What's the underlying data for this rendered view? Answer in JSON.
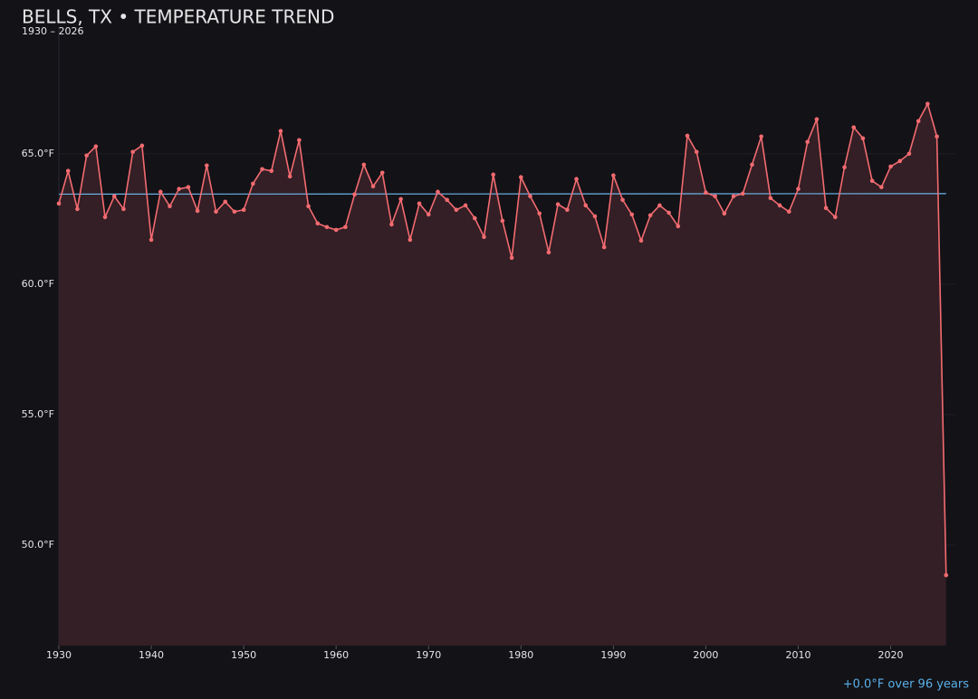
{
  "chart_data": {
    "type": "line",
    "title": "BELLS, TX • TEMPERATURE TREND",
    "subtitle": "1930 – 2026",
    "annotation": "+0.0°F over 96 years",
    "x": [
      1930,
      1931,
      1932,
      1933,
      1934,
      1935,
      1936,
      1937,
      1938,
      1939,
      1940,
      1941,
      1942,
      1943,
      1944,
      1945,
      1946,
      1947,
      1948,
      1949,
      1950,
      1951,
      1952,
      1953,
      1954,
      1955,
      1956,
      1957,
      1958,
      1959,
      1960,
      1961,
      1962,
      1963,
      1964,
      1965,
      1966,
      1967,
      1968,
      1969,
      1970,
      1971,
      1972,
      1973,
      1974,
      1975,
      1976,
      1977,
      1978,
      1979,
      1980,
      1981,
      1982,
      1983,
      1984,
      1985,
      1986,
      1987,
      1988,
      1989,
      1990,
      1991,
      1992,
      1993,
      1994,
      1995,
      1996,
      1997,
      1998,
      1999,
      2000,
      2001,
      2002,
      2003,
      2004,
      2005,
      2006,
      2007,
      2008,
      2009,
      2010,
      2011,
      2012,
      2013,
      2014,
      2015,
      2016,
      2017,
      2018,
      2019,
      2020,
      2021,
      2022,
      2023,
      2024,
      2025,
      2026
    ],
    "values": [
      63.09,
      64.34,
      62.88,
      64.93,
      65.28,
      62.57,
      63.37,
      62.88,
      65.07,
      65.31,
      61.7,
      63.54,
      62.99,
      63.65,
      63.72,
      62.81,
      64.55,
      62.78,
      63.16,
      62.78,
      62.85,
      63.85,
      64.41,
      64.34,
      65.87,
      64.13,
      65.52,
      62.99,
      62.33,
      62.19,
      62.08,
      62.19,
      63.44,
      64.58,
      63.75,
      64.27,
      62.29,
      63.26,
      61.7,
      63.09,
      62.67,
      63.54,
      63.23,
      62.85,
      63.02,
      62.53,
      61.81,
      64.2,
      62.43,
      61.01,
      64.1,
      63.37,
      62.71,
      61.22,
      63.06,
      62.85,
      64.03,
      63.02,
      62.6,
      61.42,
      64.17,
      63.23,
      62.67,
      61.67,
      62.64,
      63.02,
      62.74,
      62.22,
      65.69,
      65.07,
      63.51,
      63.37,
      62.71,
      63.37,
      63.47,
      64.58,
      65.66,
      63.3,
      63.02,
      62.78,
      63.65,
      65.45,
      66.32,
      62.92,
      62.57,
      64.48,
      66.01,
      65.59,
      63.96,
      63.72,
      64.51,
      64.72,
      65.0,
      66.25,
      66.91,
      65.66,
      48.85
    ],
    "color": "#f26b70",
    "area_color": "#331f25",
    "trend": {
      "x": [
        1930,
        2026
      ],
      "values": [
        63.45,
        63.47
      ],
      "color": "#6cb4e8"
    },
    "xlim": [
      1930,
      2027
    ],
    "ylim": [
      46.15,
      69.85
    ],
    "xticks": [
      1930,
      1940,
      1950,
      1960,
      1970,
      1980,
      1990,
      2000,
      2010,
      2020
    ],
    "yticks": [
      {
        "value": 50,
        "label": "50.0°F"
      },
      {
        "value": 55,
        "label": "55.0°F"
      },
      {
        "value": 60,
        "label": "60.0°F"
      },
      {
        "value": 65,
        "label": "65.0°F"
      }
    ],
    "grid": true
  }
}
